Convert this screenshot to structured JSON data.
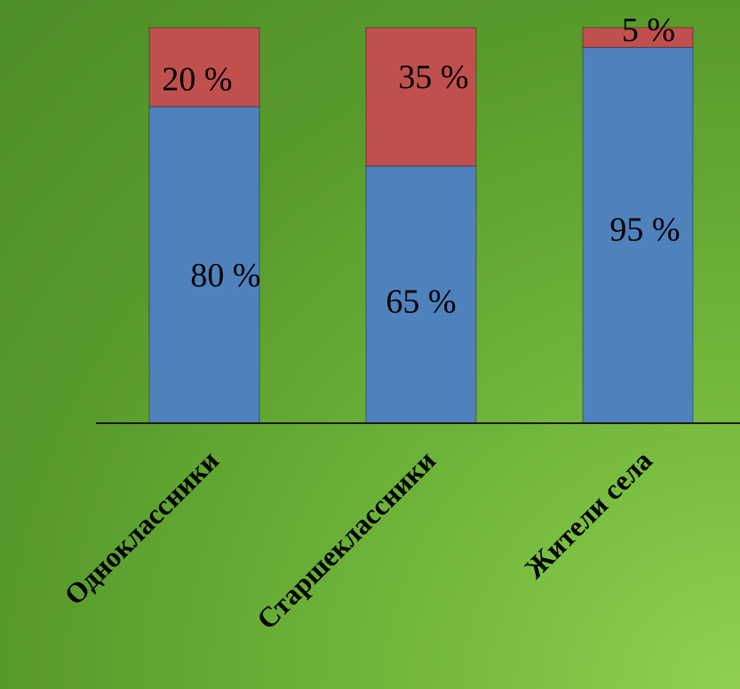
{
  "chart_data": {
    "type": "bar",
    "stacked": true,
    "percent": true,
    "categories": [
      "Одноклассники",
      "Старшеклассники",
      "Жители села"
    ],
    "series": [
      {
        "values": [
          80,
          65,
          95
        ],
        "labels": [
          "80 %",
          "65 %",
          "95 %"
        ]
      },
      {
        "values": [
          20,
          35,
          5
        ],
        "labels": [
          "20 %",
          "35 %",
          "5 %"
        ]
      }
    ],
    "ylim": [
      0,
      100
    ],
    "grid": false,
    "legend": "none",
    "colors": {
      "series_0": "#4f81bd",
      "series_1": "#c0504d",
      "axis": "#1a1a1a",
      "background": "#5ea332"
    }
  }
}
